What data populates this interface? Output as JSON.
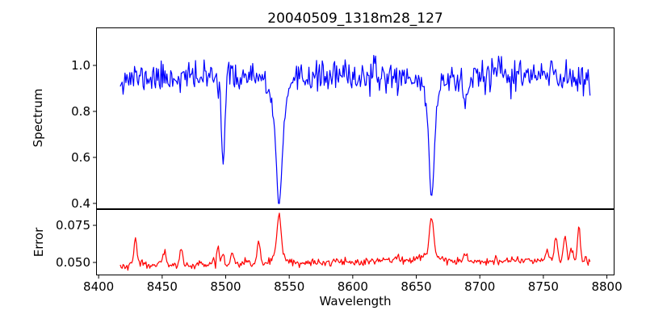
{
  "figure": {
    "background": "#ffffff",
    "spine_color": "#000000"
  },
  "chart_data": {
    "type": "line",
    "title": "20040509_1318m28_127",
    "xlabel": "Wavelength",
    "xlim": [
      8398,
      8806
    ],
    "x_ticks": [
      8400,
      8450,
      8500,
      8550,
      8600,
      8650,
      8700,
      8750,
      8800
    ],
    "x_tick_labels": [
      "8400",
      "8450",
      "8500",
      "8550",
      "8600",
      "8650",
      "8700",
      "8750",
      "8800"
    ],
    "x_data_range": [
      8417,
      8787
    ],
    "sample_step": 0.75,
    "noise_seed": 11,
    "grid": false,
    "legend": "none",
    "subplots": [
      {
        "name": "spectrum",
        "ylabel": "Spectrum",
        "line_color": "#0000ff",
        "ylim": [
          0.375,
          1.165
        ],
        "y_ticks": [
          1.0,
          0.8,
          0.6,
          0.4
        ],
        "y_tick_labels": [
          "1.0",
          "0.8",
          "0.6",
          "0.4"
        ],
        "continuum_level": 0.95,
        "noise_band": [
          0.87,
          1.06
        ],
        "absorption_lines": [
          {
            "center": 8498,
            "min_value": 0.575
          },
          {
            "center": 8542,
            "min_value": 0.4
          },
          {
            "center": 8662,
            "min_value": 0.42
          },
          {
            "center": 8688,
            "min_value": 0.83
          }
        ],
        "model": {
          "continuum_points": [
            [
              8417,
              0.945
            ],
            [
              8500,
              0.95
            ],
            [
              8560,
              0.952
            ],
            [
              8650,
              0.95
            ],
            [
              8700,
              0.955
            ],
            [
              8787,
              0.95
            ]
          ],
          "noise_sigma": 0.032,
          "high_noise_from": 8680,
          "noise_sigma_high": 0.04,
          "components": [
            {
              "center": 8498.0,
              "amp": 0.38,
              "sigma": 1.3
            },
            {
              "center": 8542.1,
              "amp": 0.41,
              "sigma": 2.2
            },
            {
              "center": 8542.1,
              "amp": 0.145,
              "sigma": 7.0
            },
            {
              "center": 8662.1,
              "amp": 0.43,
              "sigma": 2.0
            },
            {
              "center": 8662.1,
              "amp": 0.095,
              "sigma": 6.0
            },
            {
              "center": 8688.6,
              "amp": 0.13,
              "sigma": 1.8
            }
          ]
        }
      },
      {
        "name": "error",
        "ylabel": "Error",
        "line_color": "#ff0000",
        "ylim": [
          0.0413,
          0.0859
        ],
        "y_ticks": [
          0.075,
          0.05
        ],
        "y_tick_labels": [
          "0.075",
          "0.050"
        ],
        "baseline_range": [
          0.046,
          0.053
        ],
        "peaks": [
          {
            "x": 8429,
            "value": 0.067
          },
          {
            "x": 8465,
            "value": 0.06
          },
          {
            "x": 8494,
            "value": 0.061
          },
          {
            "x": 8505,
            "value": 0.058
          },
          {
            "x": 8526,
            "value": 0.065
          },
          {
            "x": 8542,
            "value": 0.083
          },
          {
            "x": 8662,
            "value": 0.08
          },
          {
            "x": 8760,
            "value": 0.068
          },
          {
            "x": 8767,
            "value": 0.069
          },
          {
            "x": 8778,
            "value": 0.076
          }
        ],
        "model": {
          "baseline_points": [
            [
              8417,
              0.0475
            ],
            [
              8440,
              0.048
            ],
            [
              8480,
              0.0477
            ],
            [
              8520,
              0.0487
            ],
            [
              8560,
              0.049
            ],
            [
              8600,
              0.0505
            ],
            [
              8635,
              0.0523
            ],
            [
              8660,
              0.051
            ],
            [
              8700,
              0.0507
            ],
            [
              8745,
              0.0517
            ],
            [
              8770,
              0.0513
            ],
            [
              8787,
              0.0495
            ]
          ],
          "noise_sigma": 0.0013,
          "components": [
            {
              "center": 8429,
              "amp": 0.019,
              "sigma": 1.2
            },
            {
              "center": 8448,
              "amp": 0.005,
              "sigma": 1.0
            },
            {
              "center": 8452,
              "amp": 0.008,
              "sigma": 1.0
            },
            {
              "center": 8465,
              "amp": 0.012,
              "sigma": 1.2
            },
            {
              "center": 8481,
              "amp": 0.003,
              "sigma": 1.0
            },
            {
              "center": 8490,
              "amp": 0.005,
              "sigma": 0.9
            },
            {
              "center": 8494,
              "amp": 0.013,
              "sigma": 1.0
            },
            {
              "center": 8498,
              "amp": 0.008,
              "sigma": 0.9
            },
            {
              "center": 8505,
              "amp": 0.009,
              "sigma": 1.1
            },
            {
              "center": 8516,
              "amp": 0.003,
              "sigma": 1.0
            },
            {
              "center": 8526,
              "amp": 0.016,
              "sigma": 1.2
            },
            {
              "center": 8542,
              "amp": 0.028,
              "sigma": 1.6
            },
            {
              "center": 8542,
              "amp": 0.005,
              "sigma": 6.0
            },
            {
              "center": 8586,
              "amp": 0.003,
              "sigma": 1.2
            },
            {
              "center": 8662,
              "amp": 0.024,
              "sigma": 1.6
            },
            {
              "center": 8662,
              "amp": 0.005,
              "sigma": 6.0
            },
            {
              "center": 8689,
              "amp": 0.006,
              "sigma": 1.5
            },
            {
              "center": 8713,
              "amp": 0.002,
              "sigma": 1.0
            },
            {
              "center": 8753,
              "amp": 0.007,
              "sigma": 1.3
            },
            {
              "center": 8760,
              "amp": 0.016,
              "sigma": 1.2
            },
            {
              "center": 8767,
              "amp": 0.017,
              "sigma": 1.2
            },
            {
              "center": 8772,
              "amp": 0.007,
              "sigma": 1.0
            },
            {
              "center": 8778,
              "amp": 0.024,
              "sigma": 1.1
            },
            {
              "center": 8783,
              "amp": 0.004,
              "sigma": 1.0
            }
          ]
        }
      }
    ]
  }
}
